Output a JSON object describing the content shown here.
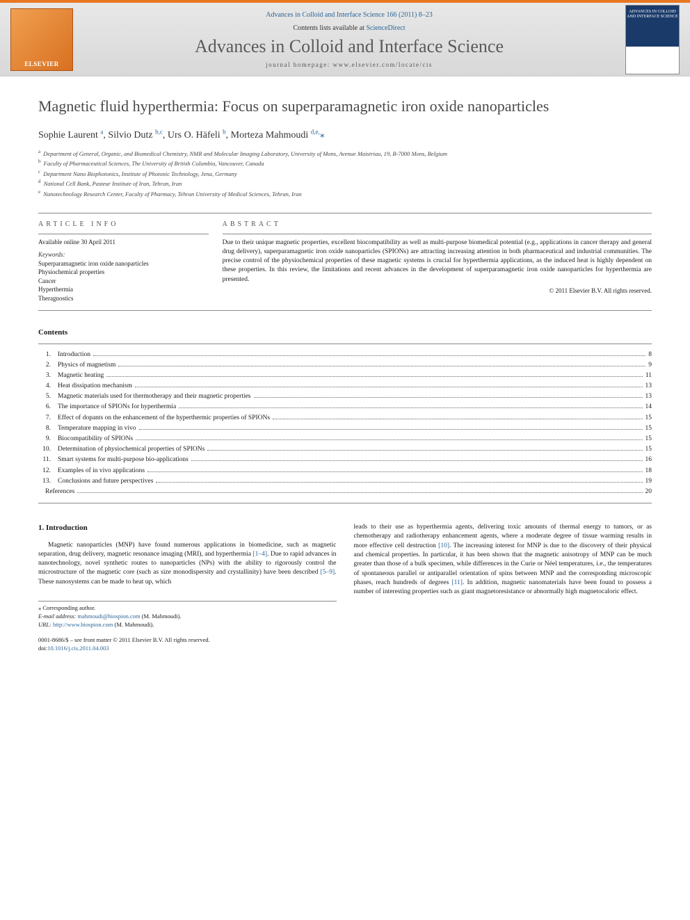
{
  "header": {
    "citation": "Advances in Colloid and Interface Science 166 (2011) 8–23",
    "contents_prefix": "Contents lists available at ",
    "contents_link": "ScienceDirect",
    "journal_name": "Advances in Colloid and Interface Science",
    "homepage_prefix": "journal homepage: ",
    "homepage_url": "www.elsevier.com/locate/cis",
    "elsevier_text": "ELSEVIER",
    "cover_text": "ADVANCES IN COLLOID AND INTERFACE SCIENCE"
  },
  "article": {
    "title": "Magnetic fluid hyperthermia: Focus on superparamagnetic iron oxide nanoparticles",
    "authors_html": "Sophie Laurent <sup>a</sup>, Silvio Dutz <sup>b,c</sup>, Urs O. Häfeli <sup>b</sup>, Morteza Mahmoudi <sup>d,e,</sup>",
    "corr_symbol": "⁎",
    "affiliations": [
      {
        "sup": "a",
        "text": "Department of General, Organic, and Biomedical Chemistry, NMR and Molecular Imaging Laboratory, University of Mons, Avenue Maistriau, 19, B-7000 Mons, Belgium"
      },
      {
        "sup": "b",
        "text": "Faculty of Pharmaceutical Sciences, The University of British Columbia, Vancouver, Canada"
      },
      {
        "sup": "c",
        "text": "Department Nano Biophotonics, Institute of Photonic Technology, Jena, Germany"
      },
      {
        "sup": "d",
        "text": "National Cell Bank, Pasteur Institute of Iran, Tehran, Iran"
      },
      {
        "sup": "e",
        "text": "Nanotechnology Research Center, Faculty of Pharmacy, Tehran University of Medical Sciences, Tehran, Iran"
      }
    ]
  },
  "info": {
    "heading": "article info",
    "available": "Available online 30 April 2011",
    "keywords_label": "Keywords:",
    "keywords": [
      "Superparamagnetic iron oxide nanoparticles",
      "Physiochemical properties",
      "Cancer",
      "Hyperthermia",
      "Theragnostics"
    ]
  },
  "abstract": {
    "heading": "abstract",
    "text": "Due to their unique magnetic properties, excellent biocompatibility as well as multi-purpose biomedical potential (e.g., applications in cancer therapy and general drug delivery), superparamagnetic iron oxide nanoparticles (SPIONs) are attracting increasing attention in both pharmaceutical and industrial communities. The precise control of the physiochemical properties of these magnetic systems is crucial for hyperthermia applications, as the induced heat is highly dependent on these properties. In this review, the limitations and recent advances in the development of superparamagnetic iron oxide nanoparticles for hyperthermia are presented.",
    "copyright": "© 2011 Elsevier B.V. All rights reserved."
  },
  "contents": {
    "heading": "Contents",
    "items": [
      {
        "num": "1.",
        "title": "Introduction",
        "page": "8"
      },
      {
        "num": "2.",
        "title": "Physics of magnetism",
        "page": "9"
      },
      {
        "num": "3.",
        "title": "Magnetic heating",
        "page": "11"
      },
      {
        "num": "4.",
        "title": "Heat dissipation mechanism",
        "page": "13"
      },
      {
        "num": "5.",
        "title": "Magnetic materials used for thermotherapy and their magnetic properties",
        "page": "13"
      },
      {
        "num": "6.",
        "title": "The importance of SPIONs for hyperthermia",
        "page": "14"
      },
      {
        "num": "7.",
        "title": "Effect of dopants on the enhancement of the hyperthermic properties of SPIONs",
        "page": "15"
      },
      {
        "num": "8.",
        "title": "Temperature mapping in vivo",
        "page": "15"
      },
      {
        "num": "9.",
        "title": "Biocompatibility of SPIONs",
        "page": "15"
      },
      {
        "num": "10.",
        "title": "Determination of physiochemical properties of SPIONs",
        "page": "15"
      },
      {
        "num": "11.",
        "title": "Smart systems for multi-purpose bio-applications",
        "page": "16"
      },
      {
        "num": "12.",
        "title": "Examples of in vivo applications",
        "page": "18"
      },
      {
        "num": "13.",
        "title": "Conclusions and future perspectives",
        "page": "19"
      },
      {
        "num": "",
        "title": "References",
        "page": "20"
      }
    ]
  },
  "intro": {
    "heading": "1. Introduction",
    "col1_p1_a": "Magnetic nanoparticles (MNP) have found numerous applications in biomedicine, such as magnetic separation, drug delivery, magnetic resonance imaging (MRI), and hyperthermia ",
    "ref1": "[1–4]",
    "col1_p1_b": ". Due to rapid advances in nanotechnology, novel synthetic routes to nanoparticles (NPs) with the ability to rigorously control the microstructure of the magnetic core (such as size monodispersity and crystallinity) have been described ",
    "ref2": "[5–9]",
    "col1_p1_c": ". These nanosystems can be made to heat up, which",
    "col2_p1_a": "leads to their use as hyperthermia agents, delivering toxic amounts of thermal energy to tumors, or as chemotherapy and radiotherapy enhancement agents, where a moderate degree of tissue warming results in more effective cell destruction ",
    "ref3": "[10]",
    "col2_p1_b": ". The increasing interest for MNP is due to the discovery of their physical and chemical properties. In particular, it has been shown that the magnetic anisotropy of MNP can be much greater than those of a bulk specimen, while differences in the Curie or Néel temperatures, i.e., the temperatures of spontaneous parallel or antiparallel orientation of spins between MNP and the corresponding microscopic phases, reach hundreds of degrees ",
    "ref4": "[11]",
    "col2_p1_c": ". In addition, magnetic nanomaterials have been found to possess a number of interesting properties such as giant magnetoresistance or abnormally high magnetocaloric effect."
  },
  "footnote": {
    "corr": "⁎ Corresponding author.",
    "email_label": "E-mail address: ",
    "email": "mahmoudi@biospion.com",
    "email_suffix": " (M. Mahmoudi).",
    "url_label": "URL: ",
    "url": "http://www.biospion.com",
    "url_suffix": " (M. Mahmoudi).",
    "front_matter": "0001-8686/$ – see front matter © 2011 Elsevier B.V. All rights reserved.",
    "doi_label": "doi:",
    "doi": "10.1016/j.cis.2011.04.003"
  },
  "colors": {
    "accent_orange": "#e87722",
    "link_blue": "#2a6496",
    "header_gray_top": "#e8e8e8",
    "header_gray_bottom": "#d8d8d8",
    "text_dark": "#1a1a1a",
    "rule_gray": "#888888"
  }
}
